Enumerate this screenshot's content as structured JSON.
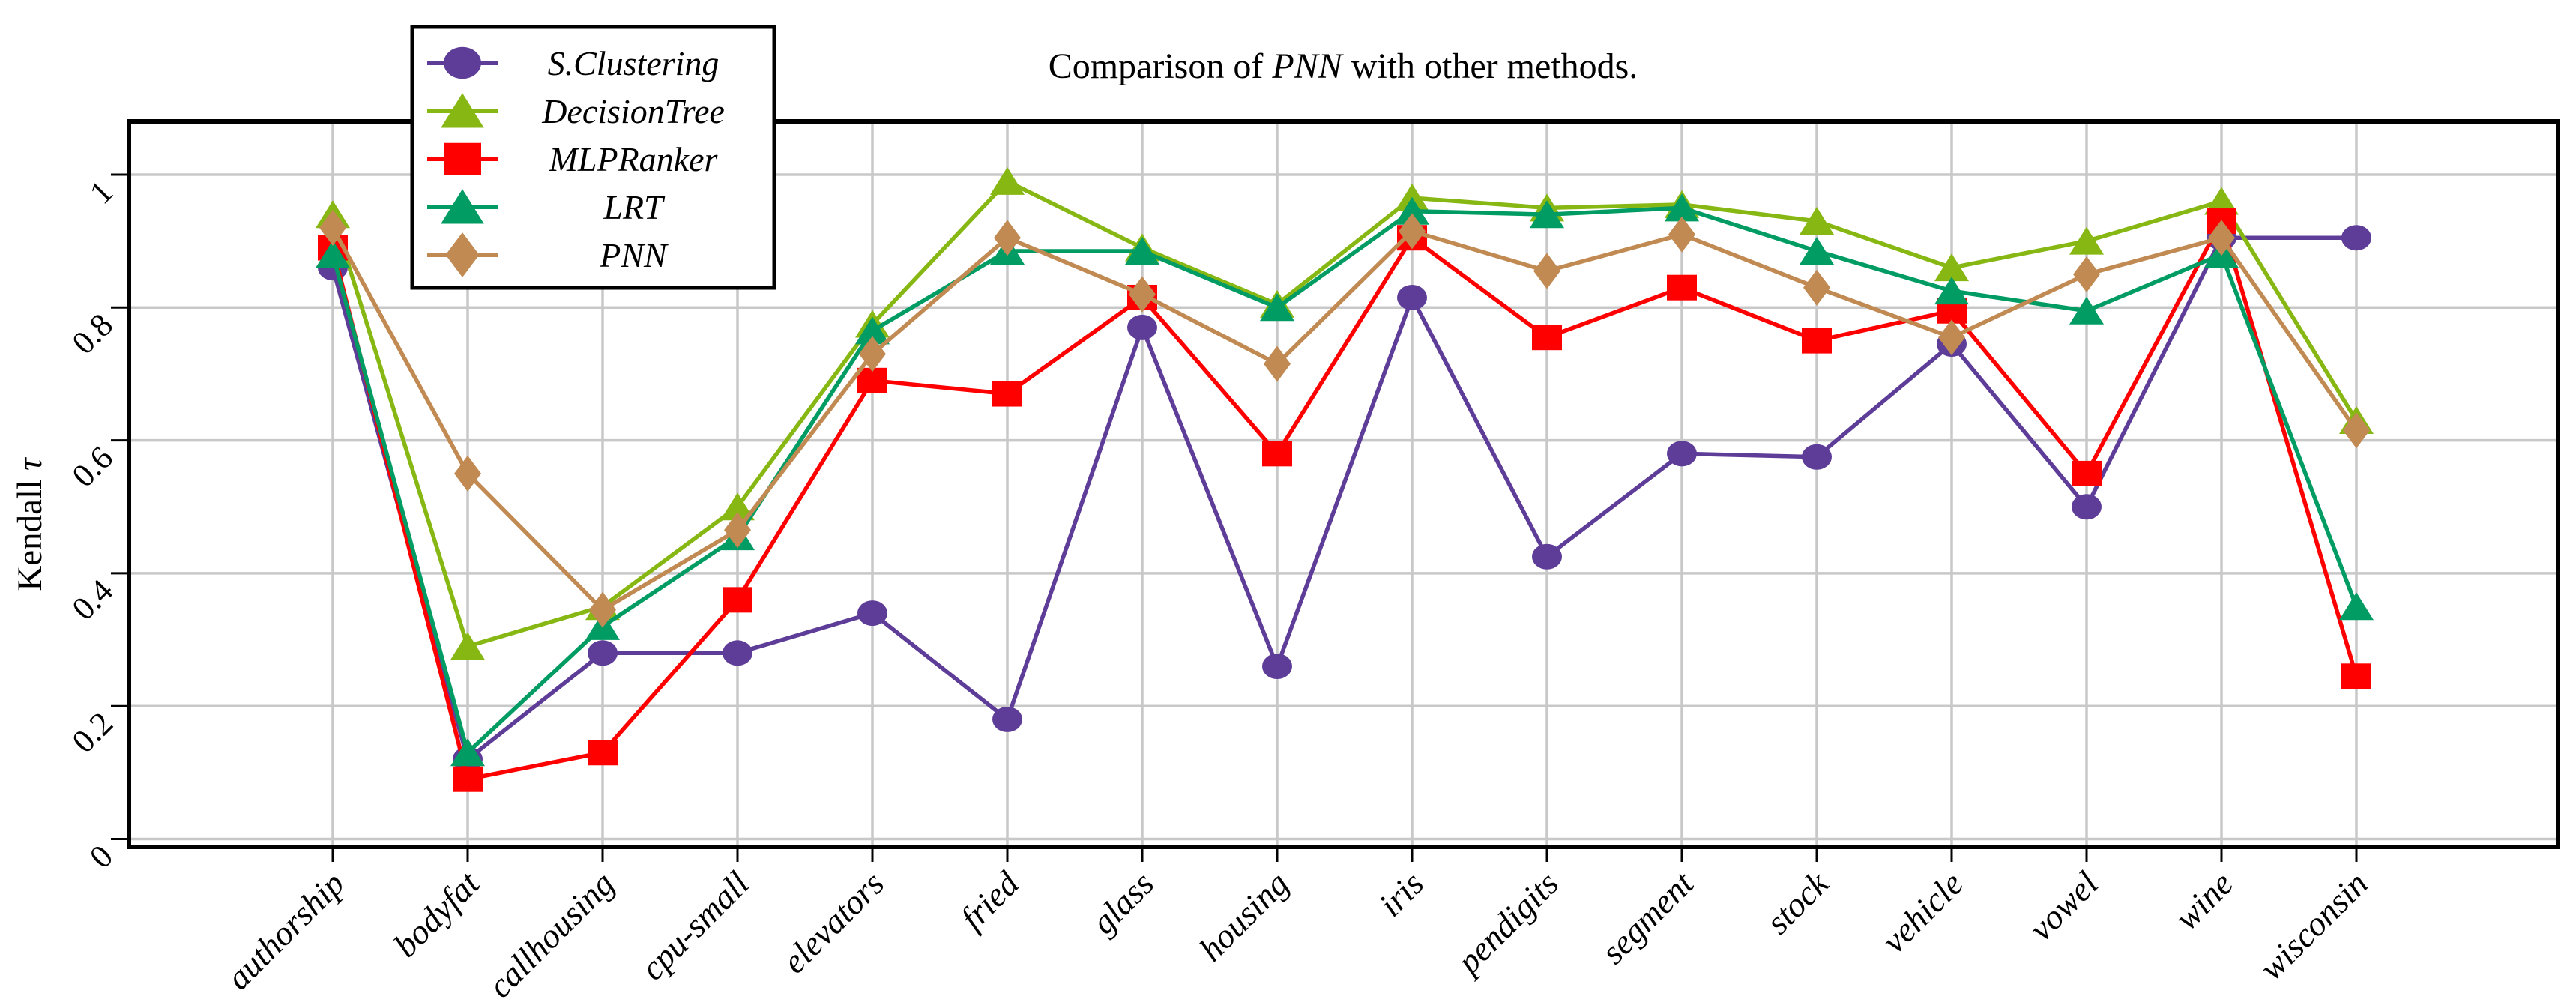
{
  "figure": {
    "background": "#FFFFFF",
    "frame_color": "#000000",
    "grid_color": "#C8C8C8"
  },
  "title": {
    "parts": [
      {
        "text": "Comparison of ",
        "style": "normal"
      },
      {
        "text": "PNN",
        "style": "italic"
      },
      {
        "text": " with other methods.",
        "style": "normal"
      }
    ]
  },
  "y_axis": {
    "label_parts": [
      {
        "text": "Kendall ",
        "style": "normal"
      },
      {
        "text": "τ",
        "style": "italic"
      }
    ],
    "ticks": [
      {
        "value": 0,
        "label": "0"
      },
      {
        "value": 0.2,
        "label": "0.2"
      },
      {
        "value": 0.4,
        "label": "0.4"
      },
      {
        "value": 0.6,
        "label": "0.6"
      },
      {
        "value": 0.8,
        "label": "0.8"
      },
      {
        "value": 1,
        "label": "1"
      }
    ]
  },
  "legend": {
    "position": "top-left",
    "entries_from_series": true
  },
  "chart_data": {
    "type": "line",
    "title": "Comparison of PNN with other methods.",
    "xlabel": "",
    "ylabel": "Kendall τ",
    "ylim": [
      -0.01,
      1.08
    ],
    "yticks": [
      0,
      0.2,
      0.4,
      0.6,
      0.8,
      1
    ],
    "grid": true,
    "legend_position": "top-left",
    "categories": [
      "authorship",
      "bodyfat",
      "callhousing",
      "cpu-small",
      "elevators",
      "fried",
      "glass",
      "housing",
      "iris",
      "pendigits",
      "segment",
      "stock",
      "vehicle",
      "vowel",
      "wine",
      "wisconsin"
    ],
    "series": [
      {
        "name": "S.Clustering",
        "color": "#5E3D99",
        "marker": "circle",
        "values": [
          0.86,
          0.12,
          0.28,
          0.28,
          0.34,
          0.18,
          0.77,
          0.26,
          0.815,
          0.425,
          0.58,
          0.575,
          0.745,
          0.5,
          0.905,
          0.905
        ]
      },
      {
        "name": "DecisionTree",
        "color": "#87B713",
        "marker": "triangle",
        "values": [
          0.94,
          0.29,
          0.35,
          0.5,
          0.775,
          0.99,
          0.89,
          0.805,
          0.965,
          0.95,
          0.955,
          0.93,
          0.86,
          0.9,
          0.96,
          0.63
        ]
      },
      {
        "name": "MLPRanker",
        "color": "#FF0000",
        "marker": "square",
        "values": [
          0.89,
          0.09,
          0.13,
          0.36,
          0.69,
          0.67,
          0.815,
          0.58,
          0.905,
          0.755,
          0.83,
          0.75,
          0.795,
          0.55,
          0.93,
          0.245
        ]
      },
      {
        "name": "LRT",
        "color": "#009C63",
        "marker": "triangle",
        "values": [
          0.88,
          0.13,
          0.32,
          0.455,
          0.765,
          0.885,
          0.885,
          0.8,
          0.945,
          0.94,
          0.95,
          0.885,
          0.825,
          0.795,
          0.88,
          0.35
        ]
      },
      {
        "name": "PNN",
        "color": "#C18A52",
        "marker": "diamond",
        "values": [
          0.92,
          0.55,
          0.345,
          0.465,
          0.73,
          0.905,
          0.82,
          0.715,
          0.915,
          0.855,
          0.91,
          0.83,
          0.755,
          0.85,
          0.905,
          0.615
        ]
      }
    ]
  }
}
